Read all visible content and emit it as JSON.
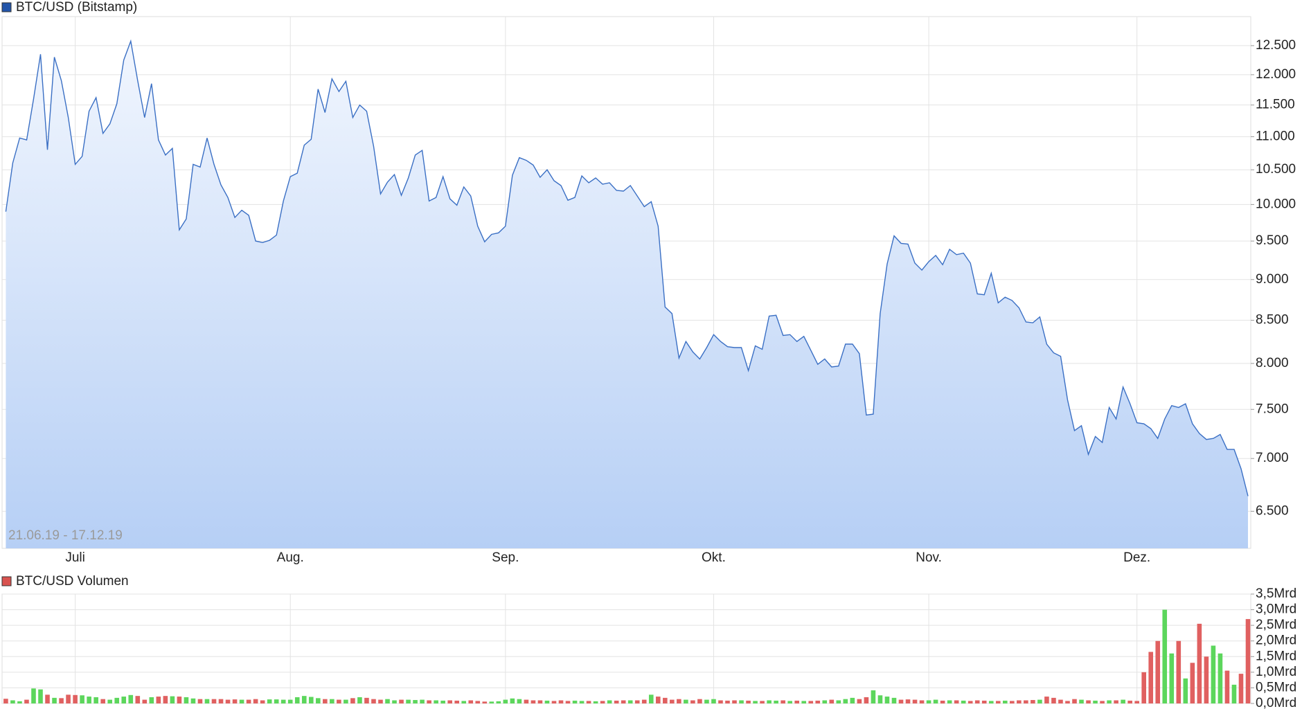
{
  "chart_data": [
    {
      "type": "area",
      "title": "BTC/USD (Bitstamp)",
      "subtitle": "21.06.19 - 17.12.19",
      "color": "#3a6fc4",
      "legend_color": "#2255aa",
      "values": [
        9900,
        10600,
        10980,
        10950,
        11600,
        12350,
        10800,
        12300,
        11900,
        11300,
        10580,
        10700,
        11400,
        11620,
        11050,
        11200,
        11520,
        12250,
        12580,
        11900,
        11300,
        11850,
        10950,
        10720,
        10820,
        9650,
        9800,
        10580,
        10540,
        10980,
        10580,
        10280,
        10100,
        9820,
        9920,
        9850,
        9500,
        9480,
        9510,
        9580,
        10050,
        10400,
        10450,
        10870,
        10960,
        11760,
        11380,
        11930,
        11720,
        11890,
        11300,
        11500,
        11400,
        10850,
        10150,
        10320,
        10430,
        10130,
        10380,
        10720,
        10790,
        10050,
        10100,
        10400,
        10080,
        9990,
        10250,
        10120,
        9700,
        9490,
        9590,
        9610,
        9700,
        10420,
        10680,
        10640,
        10570,
        10390,
        10500,
        10340,
        10270,
        10060,
        10100,
        10410,
        10310,
        10380,
        10290,
        10310,
        10200,
        10190,
        10270,
        10120,
        9970,
        10040,
        9700,
        8660,
        8580,
        8060,
        8250,
        8130,
        8050,
        8180,
        8330,
        8250,
        8190,
        8180,
        8180,
        7920,
        8200,
        8160,
        8550,
        8560,
        8320,
        8330,
        8250,
        8310,
        8150,
        7990,
        8050,
        7960,
        7970,
        8220,
        8220,
        8110,
        7440,
        7450,
        8580,
        9200,
        9570,
        9470,
        9460,
        9210,
        9120,
        9230,
        9310,
        9190,
        9390,
        9320,
        9340,
        9210,
        8820,
        8810,
        9080,
        8710,
        8780,
        8740,
        8650,
        8480,
        8470,
        8540,
        8220,
        8120,
        8080,
        7600,
        7280,
        7330,
        7040,
        7220,
        7160,
        7520,
        7400,
        7740,
        7560,
        7360,
        7350,
        7300,
        7200,
        7400,
        7540,
        7520,
        7560,
        7350,
        7250,
        7190,
        7200,
        7240,
        7090,
        7090,
        6900,
        6640
      ],
      "xlim": [
        0,
        179
      ],
      "xticks": [
        {
          "value": 10,
          "label": "Juli"
        },
        {
          "value": 41,
          "label": "Aug."
        },
        {
          "value": 72,
          "label": "Sep."
        },
        {
          "value": 102,
          "label": "Okt."
        },
        {
          "value": 133,
          "label": "Nov."
        },
        {
          "value": 163,
          "label": "Dez."
        }
      ],
      "ylim": [
        6170,
        13020
      ],
      "log_scale": true,
      "grid": true,
      "yticks": [
        {
          "value": 6500,
          "label": "6.500"
        },
        {
          "value": 7000,
          "label": "7.000"
        },
        {
          "value": 7500,
          "label": "7.500"
        },
        {
          "value": 8000,
          "label": "8.000"
        },
        {
          "value": 8500,
          "label": "8.500"
        },
        {
          "value": 9000,
          "label": "9.000"
        },
        {
          "value": 9500,
          "label": "9.500"
        },
        {
          "value": 10000,
          "label": "10.000"
        },
        {
          "value": 10500,
          "label": "10.500"
        },
        {
          "value": 11000,
          "label": "11.000"
        },
        {
          "value": 11500,
          "label": "11.500"
        },
        {
          "value": 12000,
          "label": "12.000"
        },
        {
          "value": 12500,
          "label": "12.500"
        }
      ]
    },
    {
      "type": "bar",
      "title": "BTC/USD Volumen",
      "color": "#e06060",
      "up_color": "#5cd65c",
      "legend_color": "#d9534f",
      "values": [
        0.15,
        0.1,
        0.07,
        0.12,
        0.48,
        0.45,
        0.28,
        0.18,
        0.17,
        0.28,
        0.27,
        0.26,
        0.22,
        0.2,
        0.14,
        0.12,
        0.18,
        0.22,
        0.27,
        0.24,
        0.12,
        0.2,
        0.22,
        0.24,
        0.23,
        0.22,
        0.2,
        0.16,
        0.14,
        0.14,
        0.14,
        0.14,
        0.12,
        0.13,
        0.12,
        0.12,
        0.14,
        0.1,
        0.13,
        0.13,
        0.12,
        0.12,
        0.2,
        0.24,
        0.21,
        0.17,
        0.14,
        0.14,
        0.12,
        0.12,
        0.17,
        0.2,
        0.18,
        0.14,
        0.12,
        0.14,
        0.1,
        0.12,
        0.12,
        0.11,
        0.12,
        0.1,
        0.1,
        0.09,
        0.1,
        0.09,
        0.08,
        0.1,
        0.08,
        0.06,
        0.06,
        0.07,
        0.12,
        0.16,
        0.14,
        0.12,
        0.1,
        0.1,
        0.09,
        0.08,
        0.1,
        0.08,
        0.09,
        0.08,
        0.08,
        0.07,
        0.08,
        0.1,
        0.09,
        0.1,
        0.1,
        0.1,
        0.12,
        0.28,
        0.22,
        0.18,
        0.12,
        0.14,
        0.12,
        0.1,
        0.14,
        0.12,
        0.14,
        0.1,
        0.09,
        0.1,
        0.1,
        0.09,
        0.08,
        0.08,
        0.1,
        0.09,
        0.1,
        0.08,
        0.09,
        0.08,
        0.08,
        0.09,
        0.1,
        0.12,
        0.1,
        0.14,
        0.18,
        0.14,
        0.2,
        0.42,
        0.26,
        0.22,
        0.18,
        0.12,
        0.13,
        0.12,
        0.1,
        0.1,
        0.12,
        0.09,
        0.1,
        0.1,
        0.09,
        0.08,
        0.1,
        0.09,
        0.08,
        0.08,
        0.09,
        0.08,
        0.1,
        0.1,
        0.11,
        0.12,
        0.22,
        0.18,
        0.12,
        0.08,
        0.14,
        0.12,
        0.1,
        0.09,
        0.08,
        0.1,
        0.1,
        0.12,
        0.09,
        0.08,
        1.0,
        1.65,
        2.0,
        3.0,
        1.6,
        2.0,
        0.8,
        1.3,
        2.55,
        1.5,
        1.85,
        1.6,
        1.05,
        0.6,
        0.95,
        2.7
      ],
      "xlim": [
        0,
        179
      ],
      "ylim": [
        0,
        3.5
      ],
      "grid": true,
      "yticks": [
        {
          "value": 0,
          "label": "0,0Mrd"
        },
        {
          "value": 0.5,
          "label": "0,5Mrd"
        },
        {
          "value": 1,
          "label": "1,0Mrd"
        },
        {
          "value": 1.5,
          "label": "1,5Mrd"
        },
        {
          "value": 2,
          "label": "2,0Mrd"
        },
        {
          "value": 2.5,
          "label": "2,5Mrd"
        },
        {
          "value": 3,
          "label": "3,0Mrd"
        },
        {
          "value": 3.5,
          "label": "3,5Mrd"
        }
      ]
    }
  ]
}
